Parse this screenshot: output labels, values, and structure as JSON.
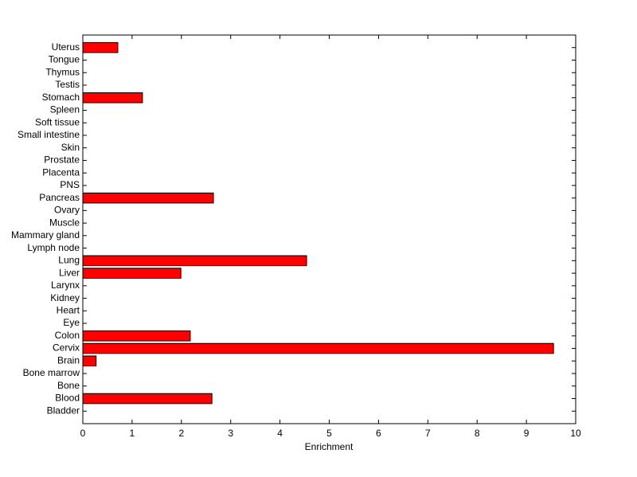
{
  "chart_data": {
    "type": "barh",
    "xlabel": "Enrichment",
    "categories": [
      "Bladder",
      "Blood",
      "Bone",
      "Bone marrow",
      "Brain",
      "Cervix",
      "Colon",
      "Eye",
      "Heart",
      "Kidney",
      "Larynx",
      "Liver",
      "Lung",
      "Lymph node",
      "Mammary gland",
      "Muscle",
      "Ovary",
      "Pancreas",
      "PNS",
      "Placenta",
      "Prostate",
      "Skin",
      "Small intestine",
      "Soft tissue",
      "Spleen",
      "Stomach",
      "Testis",
      "Thymus",
      "Tongue",
      "Uterus"
    ],
    "values": [
      0,
      2.62,
      0,
      0,
      0.27,
      9.55,
      2.18,
      0,
      0,
      0,
      0,
      1.99,
      4.54,
      0,
      0,
      0,
      0,
      2.65,
      0,
      0,
      0,
      0,
      0,
      0,
      0,
      1.21,
      0,
      0,
      0,
      0.71
    ],
    "color": "#ff0000",
    "xlim": [
      0,
      10
    ],
    "xticks": [
      0,
      1,
      2,
      3,
      4,
      5,
      6,
      7,
      8,
      9,
      10
    ]
  }
}
